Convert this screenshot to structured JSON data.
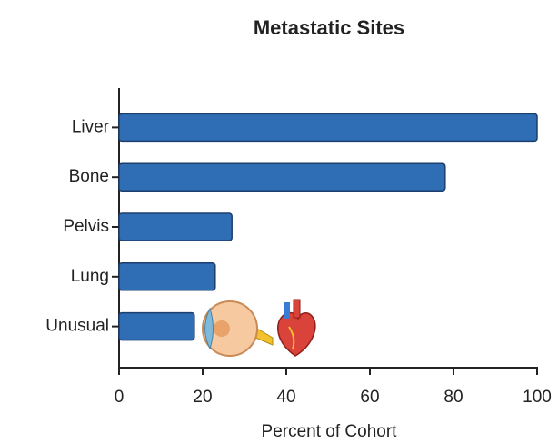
{
  "chart_data": {
    "type": "bar",
    "orientation": "horizontal",
    "title": "Metastatic Sites",
    "x_label": "Percent of Cohort",
    "categories": [
      "Liver",
      "Bone",
      "Pelvis",
      "Lung",
      "Unusual"
    ],
    "values": [
      100,
      78,
      27,
      23,
      18
    ],
    "color": "#2f6db5",
    "xlim": [
      0,
      100
    ],
    "xticks": [
      0,
      20,
      40,
      60,
      80,
      100
    ],
    "grid": false
  }
}
